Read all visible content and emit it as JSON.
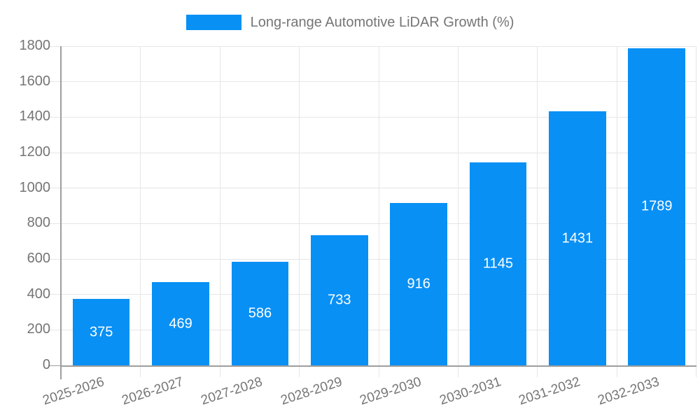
{
  "legend": {
    "label": "Long-range Automotive LiDAR Growth (%)"
  },
  "chart_data": {
    "type": "bar",
    "title": "Long-range Automotive LiDAR Growth (%)",
    "categories": [
      "2025-2026",
      "2026-2027",
      "2027-2028",
      "2028-2029",
      "2029-2030",
      "2030-2031",
      "2031-2032",
      "2032-2033"
    ],
    "values": [
      375,
      469,
      586,
      733,
      916,
      1145,
      1431,
      1789
    ],
    "series": [
      {
        "name": "Long-range Automotive LiDAR Growth (%)",
        "values": [
          375,
          469,
          586,
          733,
          916,
          1145,
          1431,
          1789
        ]
      }
    ],
    "xlabel": "",
    "ylabel": "",
    "ylim": [
      0,
      1800
    ],
    "yticks": [
      0,
      200,
      400,
      600,
      800,
      1000,
      1200,
      1400,
      1600,
      1800
    ],
    "grid": true,
    "legend_position": "top-center",
    "bar_color": "#0890f5",
    "grid_color": "#e6e6e6",
    "axis_color": "#9e9e9e",
    "tick_label_color": "#757575",
    "value_label_color": "#ffffff",
    "background_color": "#ffffff"
  }
}
